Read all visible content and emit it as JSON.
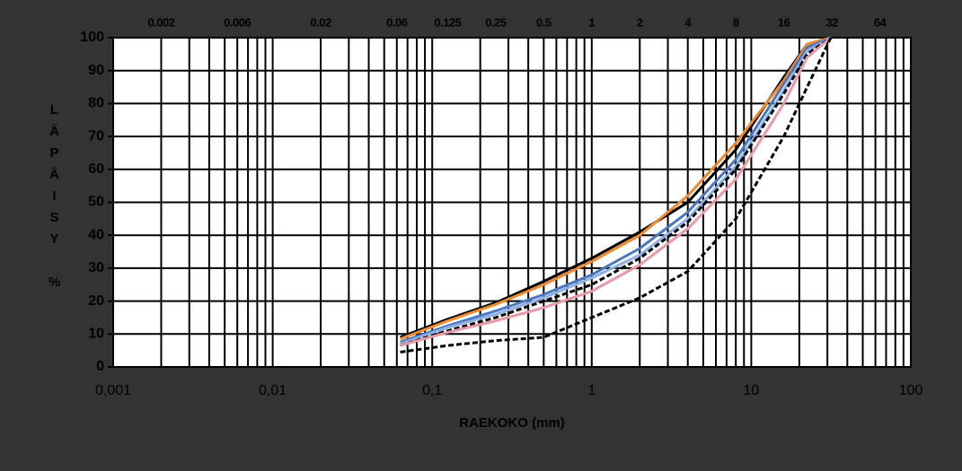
{
  "chart_data": {
    "type": "line",
    "xlabel": "RAEKOKO (mm)",
    "ylabel": "LÄPÄISY %",
    "xlog": true,
    "grid": true,
    "xlim": [
      0.001,
      100
    ],
    "ylim": [
      0,
      100
    ],
    "xticks": [
      {
        "value": 0.001,
        "label": "0,001"
      },
      {
        "value": 0.01,
        "label": "0,01"
      },
      {
        "value": 0.1,
        "label": "0,1"
      },
      1,
      10,
      100
    ],
    "yticks": [
      0,
      10,
      20,
      30,
      40,
      50,
      60,
      70,
      80,
      90,
      100
    ],
    "top_ticks": [
      0.002,
      0.006,
      0.02,
      0.06,
      0.125,
      0.25,
      0.5,
      1,
      2,
      4,
      8,
      16,
      32,
      64
    ],
    "x": [
      0.063,
      0.125,
      0.25,
      0.5,
      1,
      2,
      4,
      8,
      16,
      22.4,
      31.5
    ],
    "series": [
      {
        "color": "#000000",
        "dashed": false,
        "values": [
          9,
          14.5,
          19.5,
          26,
          33,
          41,
          50,
          66,
          88,
          98,
          100
        ]
      },
      {
        "color": "#f08a30",
        "dashed": false,
        "values": [
          8.5,
          14,
          19,
          25,
          32,
          40,
          52,
          68,
          87,
          98,
          100
        ]
      },
      {
        "color": "#4a78c0",
        "dashed": false,
        "values": [
          7.5,
          12.5,
          17,
          22,
          28,
          36,
          47,
          63,
          86,
          97,
          100
        ]
      },
      {
        "color": "#8fb0e0",
        "dashed": false,
        "values": [
          7,
          12,
          16,
          21,
          27,
          34,
          45,
          61,
          84,
          96,
          100
        ]
      },
      {
        "color": "#000000",
        "dashed": true,
        "values": [
          6.5,
          11,
          15,
          20,
          25,
          33,
          44,
          60,
          83,
          95,
          100
        ]
      },
      {
        "color": "#e89aa8",
        "dashed": false,
        "values": [
          6.5,
          10.5,
          14,
          18,
          23,
          31,
          42,
          57,
          80,
          94,
          100
        ]
      },
      {
        "color": "#000000",
        "dashed": true,
        "values": [
          4.5,
          6.5,
          8,
          9,
          15,
          21,
          29,
          45,
          70,
          85,
          100
        ]
      }
    ]
  }
}
